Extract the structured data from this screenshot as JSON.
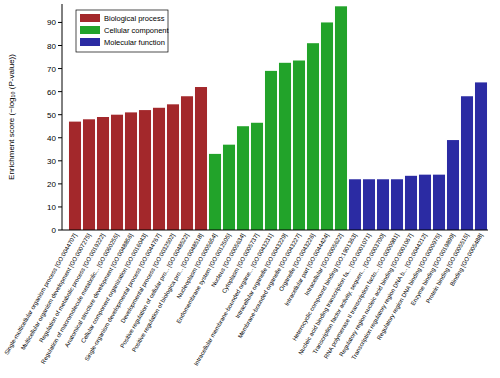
{
  "chart_data": {
    "type": "bar",
    "y_label": "Enrichment score (−log₁₀ (P-value))",
    "categories": [
      "Single-multicellular organism process [GO:0044707]",
      "Multicellular organism development [GO:0007275]",
      "Regulation of metabolic process [GO:0019222]",
      "Regulation of macromolecule metabolic... [GO:0060255]",
      "Anatomical structure development [GO:0048856]",
      "Cellular component organization [GO:0016043]",
      "Single-organism developmental process [GO:0044767]",
      "Developmental process [GO:0032502]",
      "Positive regulation of cellular pro... [GO:0048522]",
      "Positive regulation of biologica pro... [GO:0048518]",
      "Nucleoplasm [GO:0005654]",
      "Endomembrane system [GO:0012505]",
      "Nucleus [GO:0005634]",
      "Cytoplasm [GO:0005737]",
      "Intracellular membrane-bounded organe... [GO:0043231]",
      "Intracellular organelle [GO:0043229]",
      "Membrane-bounded organelle [GO:0043227]",
      "Organelle [GO:0043226]",
      "Intracellular part [GO:0044424]",
      "Intracellular [GO:0005622]",
      "Heterocyclic compound binding [GO:1901363]",
      "Nucleic acid binding transcription fa... [GO:0001071]",
      "Transcription factor activity, sequen... [GO:0003700]",
      "RNA polymerase II transcription facto... [GO:0000981]",
      "Regulatory region nucleic acid binding [GO:0001067]",
      "Transcription regulatory region DNA b... [GO:0044212]",
      "Regulatory region DNA binding [GO:0000975]",
      "Enzyme binding [GO:0019899]",
      "Protein binding [GO:0005515]",
      "Binding [GO:0005488]"
    ],
    "series": [
      {
        "name": "Biological process",
        "color": "#a3282b",
        "values": [
          47,
          48,
          49,
          50,
          51,
          52,
          53,
          54.5,
          58,
          62,
          null,
          null,
          null,
          null,
          null,
          null,
          null,
          null,
          null,
          null,
          null,
          null,
          null,
          null,
          null,
          null,
          null,
          null,
          null,
          null
        ]
      },
      {
        "name": "Cellular component",
        "color": "#22a32a",
        "values": [
          null,
          null,
          null,
          null,
          null,
          null,
          null,
          null,
          null,
          null,
          33,
          37,
          45,
          46.5,
          69,
          72.5,
          73.5,
          81,
          90,
          97,
          null,
          null,
          null,
          null,
          null,
          null,
          null,
          null,
          null,
          null
        ]
      },
      {
        "name": "Molecular function",
        "color": "#2b2ba3",
        "values": [
          null,
          null,
          null,
          null,
          null,
          null,
          null,
          null,
          null,
          null,
          null,
          null,
          null,
          null,
          null,
          null,
          null,
          null,
          null,
          null,
          22,
          22,
          22,
          22,
          23.5,
          24,
          24,
          39,
          58,
          64
        ]
      }
    ],
    "ylim": [
      0,
      98
    ],
    "yticks": [
      0,
      10,
      20,
      30,
      40,
      50,
      60,
      70,
      80,
      90
    ],
    "legend": "upper-left"
  }
}
